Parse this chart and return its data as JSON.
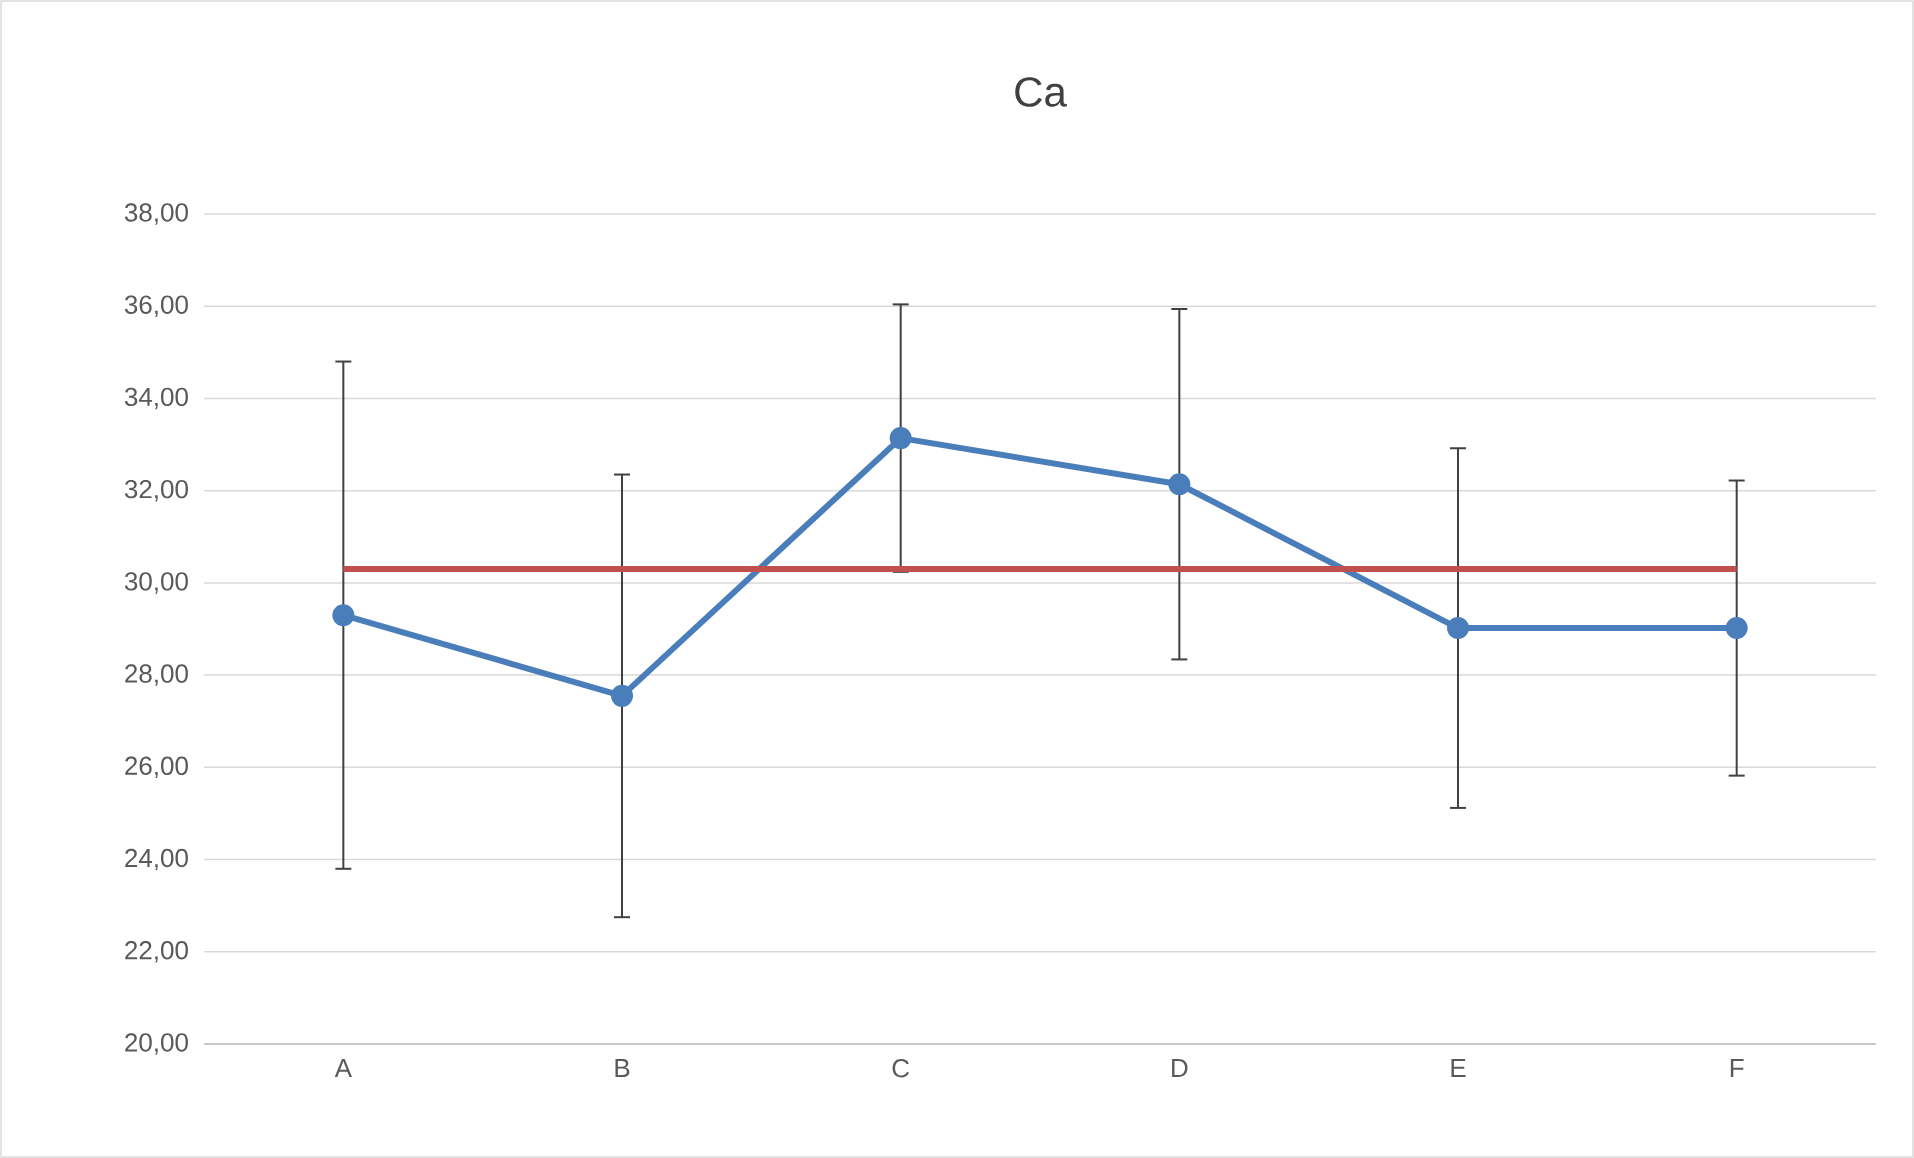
{
  "chart_data": {
    "type": "line",
    "title": "Ca",
    "categories": [
      "A",
      "B",
      "C",
      "D",
      "E",
      "F"
    ],
    "series": [
      {
        "color": "#4a7ebb",
        "marker": "circle",
        "values": [
          29.3,
          27.55,
          33.14,
          32.14,
          29.02,
          29.02
        ],
        "errors": [
          5.5,
          4.8,
          2.9,
          3.8,
          3.9,
          3.2
        ]
      },
      {
        "color": "#c0504d",
        "marker": "none",
        "values": [
          30.3,
          30.3,
          30.3,
          30.3,
          30.3,
          30.3
        ]
      }
    ],
    "ylim": [
      20,
      38
    ],
    "yticks": [
      {
        "value": 20,
        "label": "20,00"
      },
      {
        "value": 22,
        "label": "22,00"
      },
      {
        "value": 24,
        "label": "24,00"
      },
      {
        "value": 26,
        "label": "26,00"
      },
      {
        "value": 28,
        "label": "28,00"
      },
      {
        "value": 30,
        "label": "30,00"
      },
      {
        "value": 32,
        "label": "32,00"
      },
      {
        "value": 34,
        "label": "34,00"
      },
      {
        "value": 36,
        "label": "36,00"
      },
      {
        "value": 38,
        "label": "38,00"
      }
    ],
    "grid": "y",
    "line_style": "solid"
  }
}
